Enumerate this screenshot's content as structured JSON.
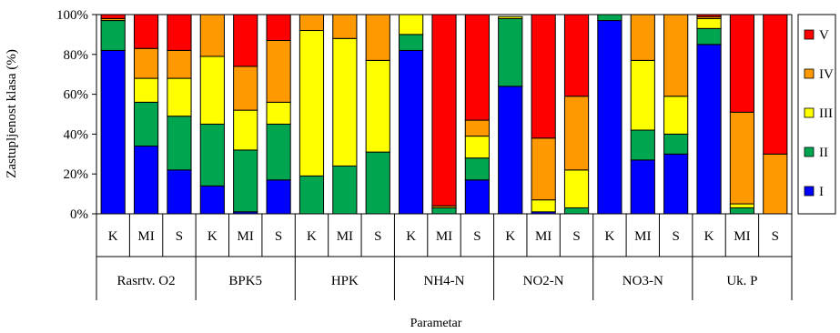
{
  "chart_data": {
    "type": "bar",
    "stacked": true,
    "title": "",
    "xlabel": "Parametar",
    "ylabel": "Zastupljenost klasa (%)",
    "ylim": [
      0,
      100
    ],
    "y_ticks": [
      "0%",
      "20%",
      "40%",
      "60%",
      "80%",
      "100%"
    ],
    "groups": [
      {
        "label": "Rasrtv. O2",
        "categories": [
          "K",
          "MI",
          "S"
        ]
      },
      {
        "label": "BPK5",
        "categories": [
          "K",
          "MI",
          "S"
        ]
      },
      {
        "label": "HPK",
        "categories": [
          "K",
          "MI",
          "S"
        ]
      },
      {
        "label": "NH4-N",
        "categories": [
          "K",
          "MI",
          "S"
        ]
      },
      {
        "label": "NO2-N",
        "categories": [
          "K",
          "MI",
          "S"
        ]
      },
      {
        "label": "NO3-N",
        "categories": [
          "K",
          "MI",
          "S"
        ]
      },
      {
        "label": "Uk. P",
        "categories": [
          "K",
          "MI",
          "S"
        ]
      }
    ],
    "series": [
      {
        "name": "I",
        "color": "#0000FF",
        "values": [
          82,
          34,
          22,
          14,
          1,
          17,
          0,
          0,
          0,
          82,
          0,
          17,
          64,
          1,
          0,
          97,
          27,
          30,
          85,
          0,
          0
        ]
      },
      {
        "name": "II",
        "color": "#00A550",
        "values": [
          15,
          22,
          27,
          31,
          31,
          28,
          19,
          24,
          31,
          8,
          3,
          11,
          34,
          0,
          3,
          3,
          15,
          10,
          8,
          3,
          0
        ]
      },
      {
        "name": "III",
        "color": "#FFFF00",
        "values": [
          0,
          12,
          19,
          34,
          20,
          11,
          73,
          64,
          46,
          10,
          0,
          11,
          1,
          6,
          19,
          0,
          35,
          19,
          5,
          2,
          0
        ]
      },
      {
        "name": "IV",
        "color": "#FF9900",
        "values": [
          1,
          15,
          14,
          21,
          22,
          31,
          8,
          12,
          23,
          0,
          1,
          8,
          0,
          31,
          37,
          0,
          23,
          41,
          1,
          46,
          30
        ]
      },
      {
        "name": "V",
        "color": "#FF0000",
        "values": [
          2,
          17,
          18,
          0,
          26,
          13,
          0,
          0,
          0,
          0,
          96,
          53,
          0,
          62,
          41,
          0,
          0,
          0,
          1,
          49,
          70
        ]
      }
    ],
    "legend": {
      "position": "right",
      "order": [
        "V",
        "IV",
        "III",
        "II",
        "I"
      ]
    }
  }
}
